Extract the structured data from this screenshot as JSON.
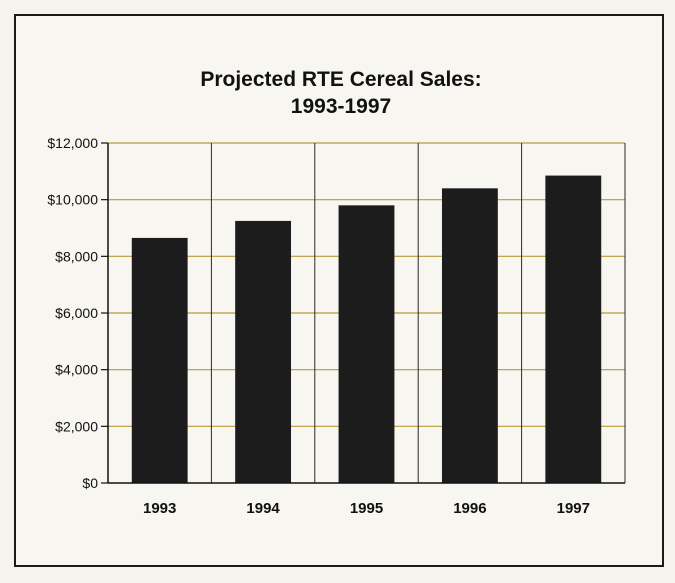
{
  "chart_data": {
    "type": "bar",
    "title": "Projected RTE Cereal Sales:",
    "subtitle": "1993-1997",
    "categories": [
      "1993",
      "1994",
      "1995",
      "1996",
      "1997"
    ],
    "values": [
      8650,
      9250,
      9800,
      10400,
      10850
    ],
    "ylim": [
      0,
      12000
    ],
    "yticks": [
      0,
      2000,
      4000,
      6000,
      8000,
      10000,
      12000
    ],
    "ytick_labels": [
      "$0",
      "$2,000",
      "$4,000",
      "$6,000",
      "$8,000",
      "$10,000",
      "$12,000"
    ],
    "xlabel": "",
    "ylabel": "",
    "grid": true,
    "colors": {
      "bar": "#1c1c1c",
      "gridline": "#b89a3a",
      "vgrid": "#2a2a2a",
      "axis": "#111111"
    }
  }
}
